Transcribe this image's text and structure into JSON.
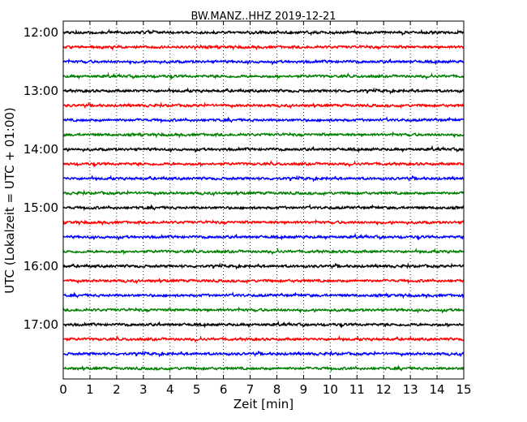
{
  "chart_data": {
    "type": "line",
    "title": "BW.MANZ..HHZ 2019-12-21",
    "xlabel": "Zeit  [min]",
    "ylabel": "UTC (Lokalzeit = UTC + 01:00)",
    "xlim": [
      0,
      15
    ],
    "x_ticks": [
      "0",
      "1",
      "2",
      "3",
      "4",
      "5",
      "6",
      "7",
      "8",
      "9",
      "10",
      "11",
      "12",
      "13",
      "14",
      "15"
    ],
    "y_ticks": [
      "12:00",
      "13:00",
      "14:00",
      "15:00",
      "16:00",
      "17:00"
    ],
    "grid": "vertical-dotted",
    "trace_interval_min": 15,
    "trace_colors": [
      "#000000",
      "#ff0000",
      "#0000ff",
      "#008000"
    ],
    "traces": [
      {
        "start": "12:00"
      },
      {
        "start": "12:15"
      },
      {
        "start": "12:30"
      },
      {
        "start": "12:45"
      },
      {
        "start": "13:00"
      },
      {
        "start": "13:15"
      },
      {
        "start": "13:30"
      },
      {
        "start": "13:45"
      },
      {
        "start": "14:00"
      },
      {
        "start": "14:15"
      },
      {
        "start": "14:30"
      },
      {
        "start": "14:45"
      },
      {
        "start": "15:00"
      },
      {
        "start": "15:15"
      },
      {
        "start": "15:30"
      },
      {
        "start": "15:45"
      },
      {
        "start": "16:00"
      },
      {
        "start": "16:15"
      },
      {
        "start": "16:30"
      },
      {
        "start": "16:45"
      },
      {
        "start": "17:00"
      },
      {
        "start": "17:15"
      },
      {
        "start": "17:30"
      },
      {
        "start": "17:45"
      }
    ]
  }
}
